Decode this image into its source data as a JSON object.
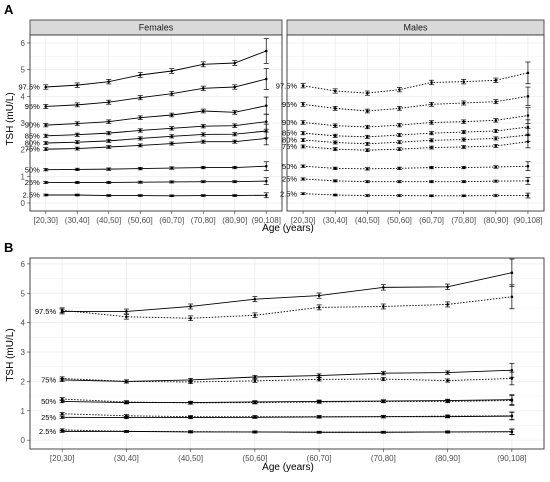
{
  "chart_data": [
    {
      "panel": "A",
      "type": "line",
      "facets": [
        "Females",
        "Males"
      ],
      "categories": [
        "[20,30]",
        "(30,40]",
        "(40,50]",
        "(50,60]",
        "(60,70]",
        "(70,80]",
        "(80,90]",
        "(90,108]"
      ],
      "xlabel": "Age (years)",
      "ylabel": "TSH  (mU/L)",
      "ylim": [
        -0.3,
        6.3
      ],
      "yticks": [
        0,
        1,
        2,
        3,
        4,
        5,
        6
      ],
      "percentile_labels": [
        "97.5%",
        "95%",
        "90%",
        "85%",
        "80%",
        "75%",
        "50%",
        "25%",
        "2.5%"
      ],
      "series": [
        {
          "facet": "Females",
          "percentile": "97.5%",
          "values": [
            4.35,
            4.42,
            4.55,
            4.8,
            4.95,
            5.2,
            5.25,
            5.7
          ]
        },
        {
          "facet": "Females",
          "percentile": "95%",
          "values": [
            3.62,
            3.68,
            3.78,
            3.95,
            4.1,
            4.3,
            4.35,
            4.65
          ]
        },
        {
          "facet": "Females",
          "percentile": "90%",
          "values": [
            2.92,
            2.98,
            3.05,
            3.2,
            3.3,
            3.45,
            3.4,
            3.65
          ]
        },
        {
          "facet": "Females",
          "percentile": "85%",
          "values": [
            2.52,
            2.56,
            2.62,
            2.72,
            2.8,
            2.88,
            2.9,
            3.05
          ]
        },
        {
          "facet": "Females",
          "percentile": "80%",
          "values": [
            2.25,
            2.28,
            2.33,
            2.42,
            2.5,
            2.57,
            2.58,
            2.7
          ]
        },
        {
          "facet": "Females",
          "percentile": "75%",
          "values": [
            2.02,
            2.04,
            2.1,
            2.16,
            2.23,
            2.3,
            2.3,
            2.42
          ]
        },
        {
          "facet": "Females",
          "percentile": "50%",
          "values": [
            1.25,
            1.26,
            1.27,
            1.29,
            1.31,
            1.33,
            1.33,
            1.38
          ]
        },
        {
          "facet": "Females",
          "percentile": "25%",
          "values": [
            0.77,
            0.77,
            0.77,
            0.78,
            0.79,
            0.8,
            0.8,
            0.82
          ]
        },
        {
          "facet": "Females",
          "percentile": "2.5%",
          "values": [
            0.3,
            0.3,
            0.28,
            0.28,
            0.27,
            0.28,
            0.28,
            0.29
          ]
        },
        {
          "facet": "Males",
          "percentile": "97.5%",
          "values": [
            4.4,
            4.2,
            4.12,
            4.25,
            4.52,
            4.55,
            4.6,
            4.88
          ]
        },
        {
          "facet": "Males",
          "percentile": "95%",
          "values": [
            3.7,
            3.55,
            3.45,
            3.55,
            3.7,
            3.75,
            3.8,
            4.0
          ]
        },
        {
          "facet": "Males",
          "percentile": "90%",
          "values": [
            3.02,
            2.9,
            2.85,
            2.92,
            3.02,
            3.05,
            3.1,
            3.28
          ]
        },
        {
          "facet": "Males",
          "percentile": "85%",
          "values": [
            2.62,
            2.52,
            2.48,
            2.55,
            2.62,
            2.66,
            2.7,
            2.85
          ]
        },
        {
          "facet": "Males",
          "percentile": "80%",
          "values": [
            2.36,
            2.27,
            2.22,
            2.28,
            2.35,
            2.38,
            2.42,
            2.55
          ]
        },
        {
          "facet": "Males",
          "percentile": "75%",
          "values": [
            2.12,
            2.02,
            1.98,
            2.02,
            2.08,
            2.1,
            2.14,
            2.3
          ]
        },
        {
          "facet": "Males",
          "percentile": "50%",
          "values": [
            1.38,
            1.3,
            1.28,
            1.3,
            1.33,
            1.33,
            1.35,
            1.38
          ]
        },
        {
          "facet": "Males",
          "percentile": "25%",
          "values": [
            0.9,
            0.83,
            0.8,
            0.8,
            0.8,
            0.8,
            0.82,
            0.83
          ]
        },
        {
          "facet": "Males",
          "percentile": "2.5%",
          "values": [
            0.35,
            0.3,
            0.28,
            0.28,
            0.27,
            0.27,
            0.28,
            0.28
          ]
        }
      ]
    },
    {
      "panel": "B",
      "type": "line",
      "categories": [
        "[20,30]",
        "(30,40]",
        "(40,50]",
        "(50,60]",
        "(60,70]",
        "(70,80]",
        "(80,90]",
        "(90,108]"
      ],
      "xlabel": "Age (years)",
      "ylabel": "TSH  (mU/L)",
      "ylim": [
        -0.3,
        6.2
      ],
      "yticks": [
        0,
        1,
        2,
        3,
        4,
        5,
        6
      ],
      "percentile_labels": [
        "97.5%",
        "75%",
        "50%",
        "25%",
        "2.5%"
      ],
      "series": [
        {
          "group": "Females",
          "line": "solid",
          "percentile": "97.5%",
          "values": [
            4.38,
            4.38,
            4.55,
            4.8,
            4.92,
            5.2,
            5.22,
            5.7
          ]
        },
        {
          "group": "Males",
          "line": "dotted",
          "percentile": "97.5%",
          "values": [
            4.42,
            4.2,
            4.15,
            4.25,
            4.52,
            4.55,
            4.62,
            4.88
          ]
        },
        {
          "group": "Females",
          "line": "solid",
          "percentile": "75%",
          "values": [
            2.05,
            2.0,
            2.05,
            2.15,
            2.2,
            2.28,
            2.3,
            2.38
          ]
        },
        {
          "group": "Males",
          "line": "dotted",
          "percentile": "75%",
          "values": [
            2.1,
            2.0,
            1.98,
            2.02,
            2.07,
            2.08,
            2.03,
            2.1
          ]
        },
        {
          "group": "Females",
          "line": "solid",
          "percentile": "50%",
          "values": [
            1.32,
            1.28,
            1.28,
            1.3,
            1.32,
            1.33,
            1.35,
            1.38
          ]
        },
        {
          "group": "Males",
          "line": "dotted",
          "percentile": "50%",
          "values": [
            1.4,
            1.3,
            1.27,
            1.28,
            1.3,
            1.32,
            1.32,
            1.35
          ]
        },
        {
          "group": "Females",
          "line": "solid",
          "percentile": "25%",
          "values": [
            0.78,
            0.77,
            0.77,
            0.78,
            0.79,
            0.8,
            0.8,
            0.82
          ]
        },
        {
          "group": "Males",
          "line": "dotted",
          "percentile": "25%",
          "values": [
            0.9,
            0.83,
            0.8,
            0.8,
            0.8,
            0.8,
            0.82,
            0.83
          ]
        },
        {
          "group": "Females",
          "line": "solid",
          "percentile": "2.5%",
          "values": [
            0.3,
            0.3,
            0.28,
            0.28,
            0.27,
            0.27,
            0.28,
            0.29
          ]
        },
        {
          "group": "Males",
          "line": "dotted",
          "percentile": "2.5%",
          "values": [
            0.35,
            0.3,
            0.29,
            0.28,
            0.27,
            0.27,
            0.28,
            0.28
          ]
        }
      ]
    }
  ],
  "colors": {
    "line": "#000000",
    "panel_border": "#333333",
    "strip_fill": "#d9d9d9",
    "grid": "#ebebeb",
    "background": "#ffffff"
  }
}
